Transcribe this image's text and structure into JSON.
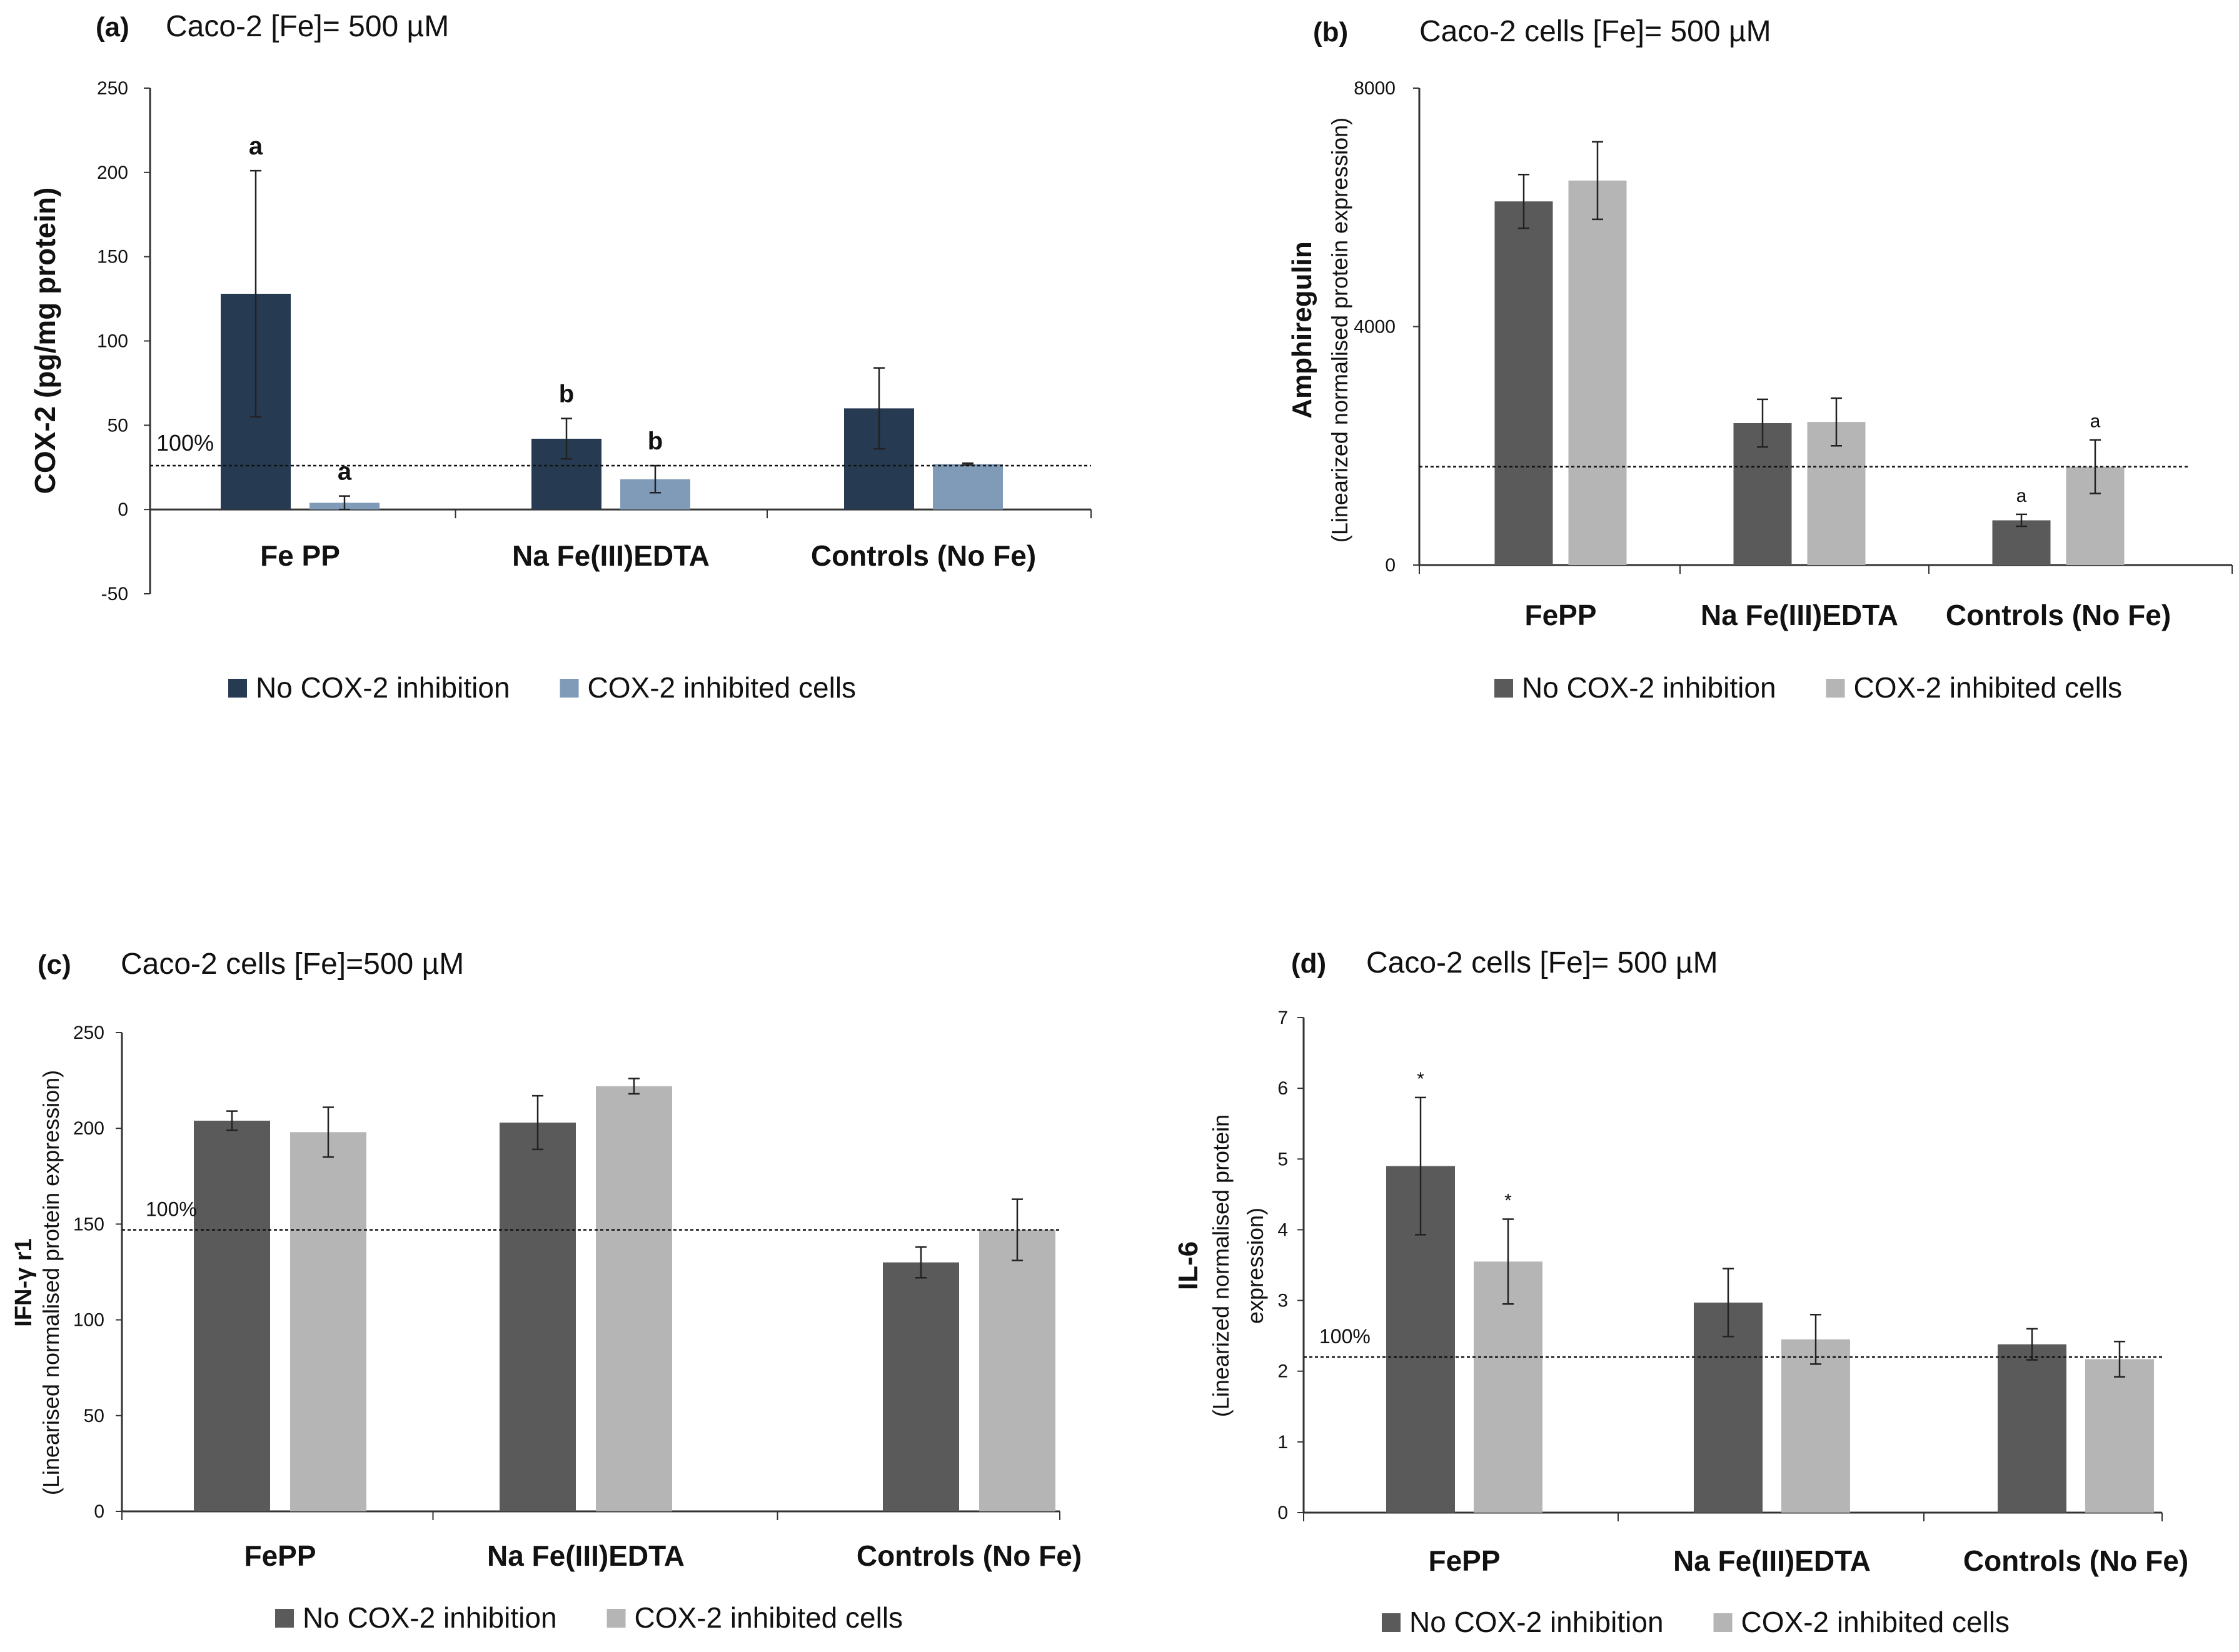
{
  "colors": {
    "a_no_inhibition": "#263a52",
    "a_inhibited": "#7f9bb8",
    "no_inhibition": "#5a5a5a",
    "inhibited": "#b5b5b5",
    "axis": "#333333",
    "text": "#111111"
  },
  "chart_data": [
    {
      "id": "a",
      "panel_letter": "(a)",
      "title": "Caco-2 [Fe]= 500 µM",
      "type": "bar",
      "ylabel": "COX-2 (pg/mg protein)",
      "ylabel_sub": "",
      "ylim": [
        -50,
        250
      ],
      "yticks": [
        -50,
        0,
        50,
        100,
        150,
        200,
        250
      ],
      "categories": [
        "Fe PP",
        "Na Fe(III)EDTA",
        "Controls (No Fe)"
      ],
      "series": [
        {
          "name": "No COX-2 inhibition",
          "color_key": "a_no_inhibition",
          "values": [
            128,
            42,
            60
          ],
          "errors": [
            73,
            12,
            24
          ],
          "labels": [
            "a",
            "b",
            ""
          ]
        },
        {
          "name": "COX-2 inhibited cells",
          "color_key": "a_inhibited",
          "values": [
            4,
            18,
            27
          ],
          "errors": [
            4,
            8,
            0.5
          ],
          "labels": [
            "a",
            "b",
            ""
          ]
        }
      ],
      "reference_line": {
        "value": 26,
        "label": "100%"
      }
    },
    {
      "id": "b",
      "panel_letter": "(b)",
      "title": "Caco-2 cells [Fe]= 500 µM",
      "type": "bar",
      "ylabel": "Amphiregulin",
      "ylabel_sub": "(Linearized normalised protein expression)",
      "ylim": [
        0,
        8000
      ],
      "yticks": [
        0,
        4000,
        8000
      ],
      "categories": [
        "FePP",
        "Na Fe(III)EDTA",
        "Controls (No Fe)"
      ],
      "series": [
        {
          "name": "No COX-2 inhibition",
          "color_key": "no_inhibition",
          "values": [
            6100,
            2380,
            750
          ],
          "errors": [
            450,
            400,
            100
          ],
          "labels": [
            "",
            "",
            "a"
          ]
        },
        {
          "name": "COX-2 inhibited cells",
          "color_key": "inhibited",
          "values": [
            6450,
            2400,
            1650
          ],
          "errors": [
            650,
            400,
            450
          ],
          "labels": [
            "",
            "",
            "a"
          ]
        }
      ],
      "reference_line": {
        "value": 1650,
        "label": ""
      }
    },
    {
      "id": "c",
      "panel_letter": "(c)",
      "title": "Caco-2 cells [Fe]=500 µM",
      "type": "bar",
      "ylabel": "IFN-γ r1",
      "ylabel_sub": "(Linearised normalised protein expression)",
      "ylim": [
        0,
        250
      ],
      "yticks": [
        0,
        50,
        100,
        150,
        200,
        250
      ],
      "categories": [
        "FePP",
        "Na Fe(III)EDTA",
        "Controls (No Fe)"
      ],
      "series": [
        {
          "name": "No COX-2 inhibition",
          "color_key": "no_inhibition",
          "values": [
            204,
            203,
            130
          ],
          "errors": [
            5,
            14,
            8
          ],
          "labels": [
            "",
            "",
            ""
          ]
        },
        {
          "name": "COX-2 inhibited cells",
          "color_key": "inhibited",
          "values": [
            198,
            222,
            147
          ],
          "errors": [
            13,
            4,
            16
          ],
          "labels": [
            "",
            "",
            ""
          ]
        }
      ],
      "reference_line": {
        "value": 147,
        "label": "100%"
      }
    },
    {
      "id": "d",
      "panel_letter": "(d)",
      "title": "Caco-2 cells [Fe]= 500 µM",
      "type": "bar",
      "ylabel": "IL-6",
      "ylabel_sub": "(Linearized normalised protein",
      "ylabel_sub2": "expression)",
      "ylim": [
        0,
        7
      ],
      "yticks": [
        0,
        1,
        2,
        3,
        4,
        5,
        6,
        7
      ],
      "categories": [
        "FePP",
        "Na Fe(III)EDTA",
        "Controls (No Fe)"
      ],
      "series": [
        {
          "name": "No COX-2 inhibition",
          "color_key": "no_inhibition",
          "values": [
            4.9,
            2.97,
            2.38
          ],
          "errors": [
            0.97,
            0.48,
            0.22
          ],
          "labels": [
            "*",
            "",
            ""
          ]
        },
        {
          "name": "COX-2 inhibited cells",
          "color_key": "inhibited",
          "values": [
            3.55,
            2.45,
            2.17
          ],
          "errors": [
            0.6,
            0.35,
            0.25
          ],
          "labels": [
            "*",
            "",
            ""
          ]
        }
      ],
      "reference_line": {
        "value": 2.2,
        "label": "100%"
      }
    }
  ]
}
